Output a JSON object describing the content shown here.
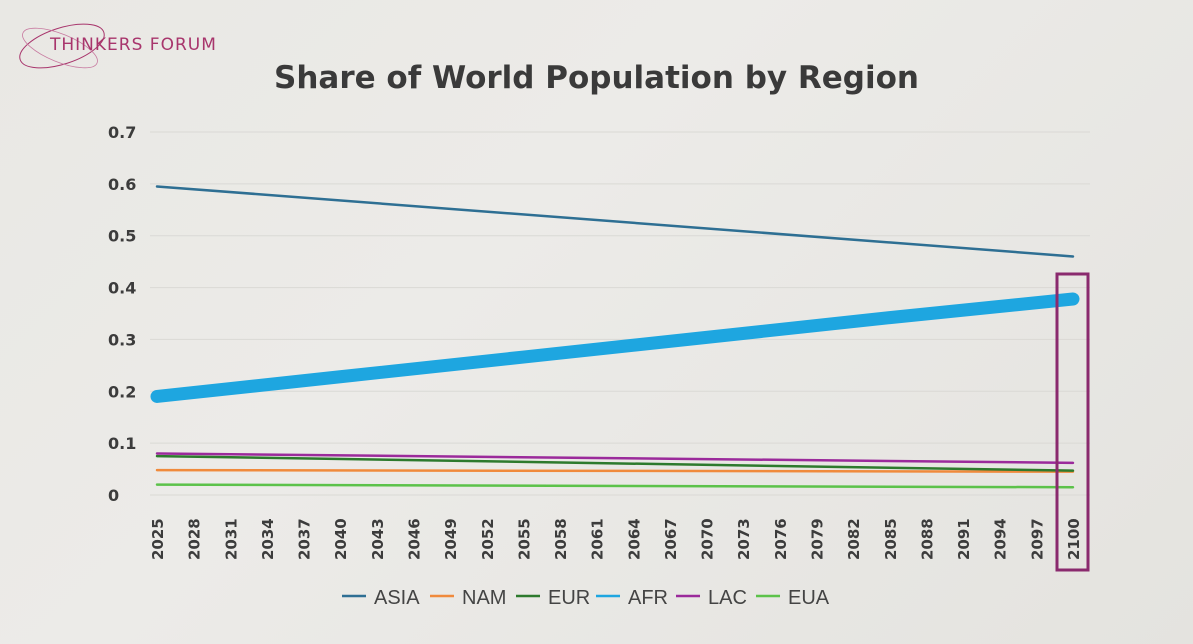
{
  "brand": {
    "name": "THINKERS FORUM",
    "color": "#a8356c"
  },
  "chart_data": {
    "type": "line",
    "title": "Share of World Population by Region",
    "xlabel": "",
    "ylabel": "",
    "ylim": [
      0,
      0.7
    ],
    "yticks": [
      "0",
      "0.1",
      "0.2",
      "0.3",
      "0.4",
      "0.5",
      "0.6",
      "0.7"
    ],
    "xlim": [
      2025,
      2100
    ],
    "xticks": [
      2025,
      2028,
      2031,
      2034,
      2037,
      2040,
      2043,
      2046,
      2049,
      2052,
      2055,
      2058,
      2061,
      2064,
      2067,
      2070,
      2073,
      2076,
      2079,
      2082,
      2085,
      2088,
      2091,
      2094,
      2097,
      2100
    ],
    "highlight_x": 2100,
    "highlight_color": "#8a2a6e",
    "grid": true,
    "legend_position": "bottom",
    "series": [
      {
        "name": "ASIA",
        "color": "#2e6f93",
        "x": [
          2025,
          2100
        ],
        "y": [
          0.595,
          0.46
        ]
      },
      {
        "name": "NAM",
        "color": "#f08a3c",
        "x": [
          2025,
          2100
        ],
        "y": [
          0.048,
          0.045
        ]
      },
      {
        "name": "EUR",
        "color": "#2d7a2d",
        "x": [
          2025,
          2100
        ],
        "y": [
          0.075,
          0.047
        ]
      },
      {
        "name": "AFR",
        "color": "#1ea6e0",
        "x": [
          2025,
          2040,
          2055,
          2070,
          2085,
          2100
        ],
        "y": [
          0.19,
          0.228,
          0.266,
          0.304,
          0.342,
          0.378
        ]
      },
      {
        "name": "LAC",
        "color": "#9b2a9b",
        "x": [
          2025,
          2100
        ],
        "y": [
          0.08,
          0.062
        ]
      },
      {
        "name": "EUA",
        "color": "#5cc24a",
        "x": [
          2025,
          2100
        ],
        "y": [
          0.02,
          0.015
        ]
      }
    ]
  }
}
